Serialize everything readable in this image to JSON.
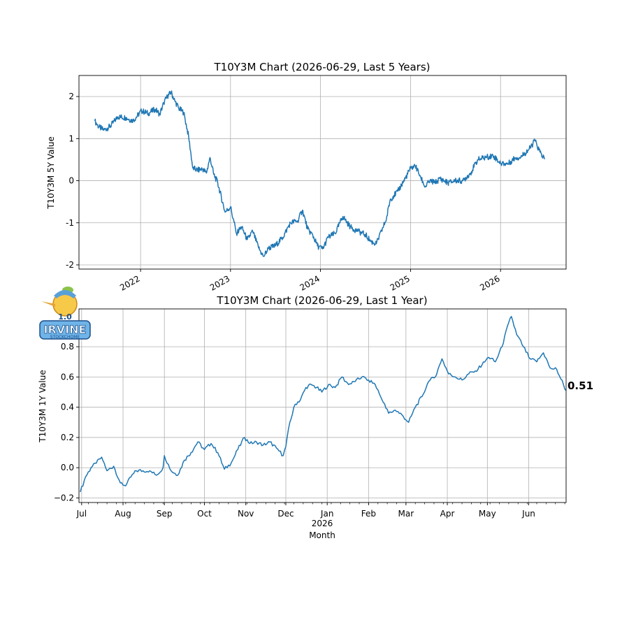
{
  "colors": {
    "line": "#1f77b4"
  },
  "logo": {
    "badge": "1.0",
    "name": "IRVINE",
    "sub": "STOCKCHOME"
  },
  "chart_data": [
    {
      "type": "line",
      "title": "T10Y3M Chart (2026-06-29, Last 5 Years)",
      "ylabel": "T10Y3M 5Y Value",
      "xlabel": "",
      "xlim": [
        "2021-04-26",
        "2026-09-24"
      ],
      "ylim": [
        -2.1,
        2.5
      ],
      "yticks": [
        -2,
        -1,
        0,
        1,
        2
      ],
      "xtick_labels": [
        {
          "date": "2022-01-01",
          "label": "2022"
        },
        {
          "date": "2023-01-01",
          "label": "2023"
        },
        {
          "date": "2024-01-01",
          "label": "2024"
        },
        {
          "date": "2025-01-01",
          "label": "2025"
        },
        {
          "date": "2026-01-01",
          "label": "2026"
        }
      ],
      "grid": true,
      "series": [
        {
          "x": [
            "2021-06-29",
            "2021-07-15",
            "2021-08-05",
            "2021-09-01",
            "2021-10-01",
            "2021-11-01",
            "2021-12-01",
            "2022-01-05",
            "2022-02-01",
            "2022-03-01",
            "2022-03-20",
            "2022-04-05",
            "2022-04-20",
            "2022-05-05",
            "2022-05-20",
            "2022-06-05",
            "2022-06-25",
            "2022-07-15",
            "2022-08-01",
            "2022-08-20",
            "2022-09-10",
            "2022-09-25",
            "2022-10-10",
            "2022-10-25",
            "2022-11-10",
            "2022-11-25",
            "2022-12-10",
            "2023-01-01",
            "2023-01-25",
            "2023-02-15",
            "2023-03-10",
            "2023-04-01",
            "2023-04-25",
            "2023-05-15",
            "2023-06-05",
            "2023-07-01",
            "2023-08-01",
            "2023-09-01",
            "2023-10-01",
            "2023-10-20",
            "2023-11-10",
            "2023-12-01",
            "2023-12-20",
            "2024-01-10",
            "2024-02-01",
            "2024-03-01",
            "2024-04-01",
            "2024-05-01",
            "2024-06-01",
            "2024-07-01",
            "2024-07-25",
            "2024-08-15",
            "2024-09-05",
            "2024-09-25",
            "2024-10-10",
            "2024-10-25",
            "2024-11-10",
            "2024-11-25",
            "2024-12-10",
            "2025-01-01",
            "2025-01-20",
            "2025-02-10",
            "2025-03-01",
            "2025-03-20",
            "2025-04-10",
            "2025-05-01",
            "2025-06-01",
            "2025-07-01",
            "2025-08-01",
            "2025-09-01",
            "2025-10-01",
            "2025-11-01",
            "2025-12-01",
            "2026-01-01",
            "2026-02-01",
            "2026-03-01",
            "2026-03-20",
            "2026-04-10",
            "2026-05-01",
            "2026-05-20",
            "2026-06-10",
            "2026-06-29"
          ],
          "y": [
            1.42,
            1.28,
            1.2,
            1.3,
            1.52,
            1.5,
            1.42,
            1.66,
            1.6,
            1.7,
            1.58,
            1.85,
            2.0,
            2.1,
            1.9,
            1.72,
            1.62,
            1.05,
            0.3,
            0.25,
            0.28,
            0.18,
            0.55,
            0.15,
            -0.05,
            -0.4,
            -0.75,
            -0.62,
            -1.25,
            -1.1,
            -1.4,
            -1.2,
            -1.6,
            -1.8,
            -1.6,
            -1.55,
            -1.35,
            -1.0,
            -0.95,
            -0.7,
            -1.15,
            -1.3,
            -1.55,
            -1.62,
            -1.35,
            -1.25,
            -0.85,
            -1.1,
            -1.2,
            -1.28,
            -1.45,
            -1.5,
            -1.2,
            -0.9,
            -0.45,
            -0.35,
            -0.25,
            -0.1,
            0.05,
            0.3,
            0.35,
            0.1,
            -0.15,
            0.0,
            -0.05,
            0.05,
            -0.05,
            0.0,
            0.0,
            0.18,
            0.5,
            0.55,
            0.6,
            0.42,
            0.4,
            0.55,
            0.55,
            0.65,
            0.78,
            0.95,
            0.68,
            0.51
          ]
        }
      ]
    },
    {
      "type": "line",
      "title": "T10Y3M Chart (2026-06-29, Last 1 Year)",
      "ylabel": "T10Y3M 1Y Value",
      "xlabel": "Month",
      "year_label": "2026",
      "xlim": [
        "2025-06-29",
        "2026-06-29"
      ],
      "ylim": [
        -0.23,
        1.05
      ],
      "yticks": [
        -0.2,
        0.0,
        0.2,
        0.4,
        0.6,
        0.8
      ],
      "ytick_labels": [
        "−0.2",
        "0.0",
        "0.2",
        "0.4",
        "0.6",
        "0.8"
      ],
      "xtick_labels": [
        {
          "date": "2025-07-01",
          "label": "Jul"
        },
        {
          "date": "2025-08-01",
          "label": "Aug"
        },
        {
          "date": "2025-09-01",
          "label": "Sep"
        },
        {
          "date": "2025-10-01",
          "label": "Oct"
        },
        {
          "date": "2025-11-01",
          "label": "Nov"
        },
        {
          "date": "2025-12-01",
          "label": "Dec"
        },
        {
          "date": "2026-01-01",
          "label": "Jan"
        },
        {
          "date": "2026-02-01",
          "label": "Feb"
        },
        {
          "date": "2026-03-01",
          "label": "Mar"
        },
        {
          "date": "2026-04-01",
          "label": "Apr"
        },
        {
          "date": "2026-05-01",
          "label": "May"
        },
        {
          "date": "2026-06-01",
          "label": "Jun"
        }
      ],
      "grid": true,
      "last_value_label": "0.51",
      "series": [
        {
          "x": [
            "2025-06-30",
            "2025-07-04",
            "2025-07-08",
            "2025-07-12",
            "2025-07-16",
            "2025-07-20",
            "2025-07-25",
            "2025-07-30",
            "2025-08-03",
            "2025-08-07",
            "2025-08-11",
            "2025-08-16",
            "2025-08-21",
            "2025-08-26",
            "2025-08-31",
            "2025-09-01",
            "2025-09-06",
            "2025-09-11",
            "2025-09-16",
            "2025-09-21",
            "2025-09-26",
            "2025-10-01",
            "2025-10-06",
            "2025-10-11",
            "2025-10-16",
            "2025-10-21",
            "2025-10-26",
            "2025-10-31",
            "2025-11-04",
            "2025-11-09",
            "2025-11-14",
            "2025-11-19",
            "2025-11-24",
            "2025-11-29",
            "2025-12-01",
            "2025-12-04",
            "2025-12-08",
            "2025-12-12",
            "2025-12-16",
            "2025-12-20",
            "2025-12-24",
            "2025-12-28",
            "2026-01-02",
            "2026-01-07",
            "2026-01-12",
            "2026-01-17",
            "2026-01-22",
            "2026-01-27",
            "2026-02-01",
            "2026-02-06",
            "2026-02-11",
            "2026-02-16",
            "2026-02-21",
            "2026-02-26",
            "2026-03-03",
            "2026-03-08",
            "2026-03-13",
            "2026-03-18",
            "2026-03-23",
            "2026-03-28",
            "2026-04-02",
            "2026-04-07",
            "2026-04-12",
            "2026-04-17",
            "2026-04-22",
            "2026-04-27",
            "2026-05-02",
            "2026-05-07",
            "2026-05-12",
            "2026-05-17",
            "2026-05-19",
            "2026-05-23",
            "2026-05-28",
            "2026-06-02",
            "2026-06-07",
            "2026-06-12",
            "2026-06-17",
            "2026-06-22",
            "2026-06-29"
          ],
          "y": [
            -0.16,
            -0.06,
            0.0,
            0.03,
            0.07,
            -0.02,
            0.01,
            -0.1,
            -0.12,
            -0.06,
            -0.02,
            -0.02,
            -0.02,
            -0.05,
            0.0,
            0.08,
            -0.02,
            -0.05,
            0.05,
            0.1,
            0.17,
            0.12,
            0.16,
            0.1,
            -0.01,
            0.03,
            0.12,
            0.2,
            0.16,
            0.17,
            0.15,
            0.17,
            0.13,
            0.08,
            0.14,
            0.3,
            0.42,
            0.45,
            0.53,
            0.55,
            0.53,
            0.5,
            0.55,
            0.53,
            0.6,
            0.55,
            0.57,
            0.6,
            0.58,
            0.55,
            0.45,
            0.36,
            0.38,
            0.35,
            0.3,
            0.4,
            0.47,
            0.57,
            0.6,
            0.72,
            0.62,
            0.6,
            0.58,
            0.62,
            0.64,
            0.68,
            0.73,
            0.7,
            0.8,
            0.96,
            1.0,
            0.88,
            0.8,
            0.72,
            0.7,
            0.76,
            0.66,
            0.65,
            0.51
          ]
        }
      ]
    }
  ]
}
